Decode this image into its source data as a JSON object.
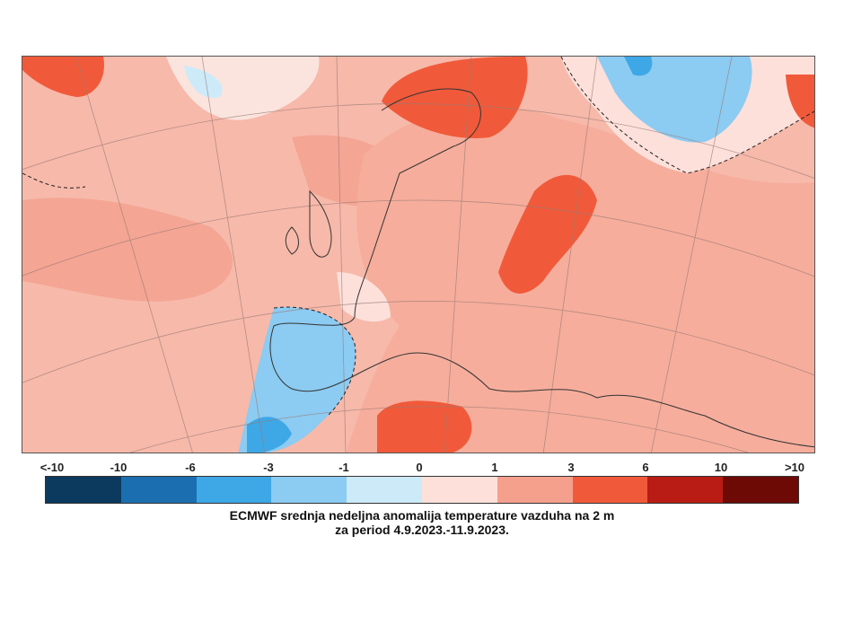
{
  "map": {
    "model": "ECMWF",
    "variable": "anomalija temperature vazduha na 2 m"
  },
  "legend": {
    "ticks": [
      "<-10",
      "-10",
      "-6",
      "-3",
      "-1",
      "0",
      "1",
      "3",
      "6",
      "10",
      ">10"
    ],
    "colors": [
      "#0b3a5e",
      "#1b6fb0",
      "#3ea7e6",
      "#8ccbf2",
      "#cdeaf9",
      "#fde0da",
      "#f5a08c",
      "#f05a3a",
      "#b81c14",
      "#6e0a06"
    ]
  },
  "caption": {
    "line1": "ECMWF srednja nedeljna anomalija temperature vazduha na 2 m",
    "line2": "za period 4.9.2023.-11.9.2023."
  }
}
